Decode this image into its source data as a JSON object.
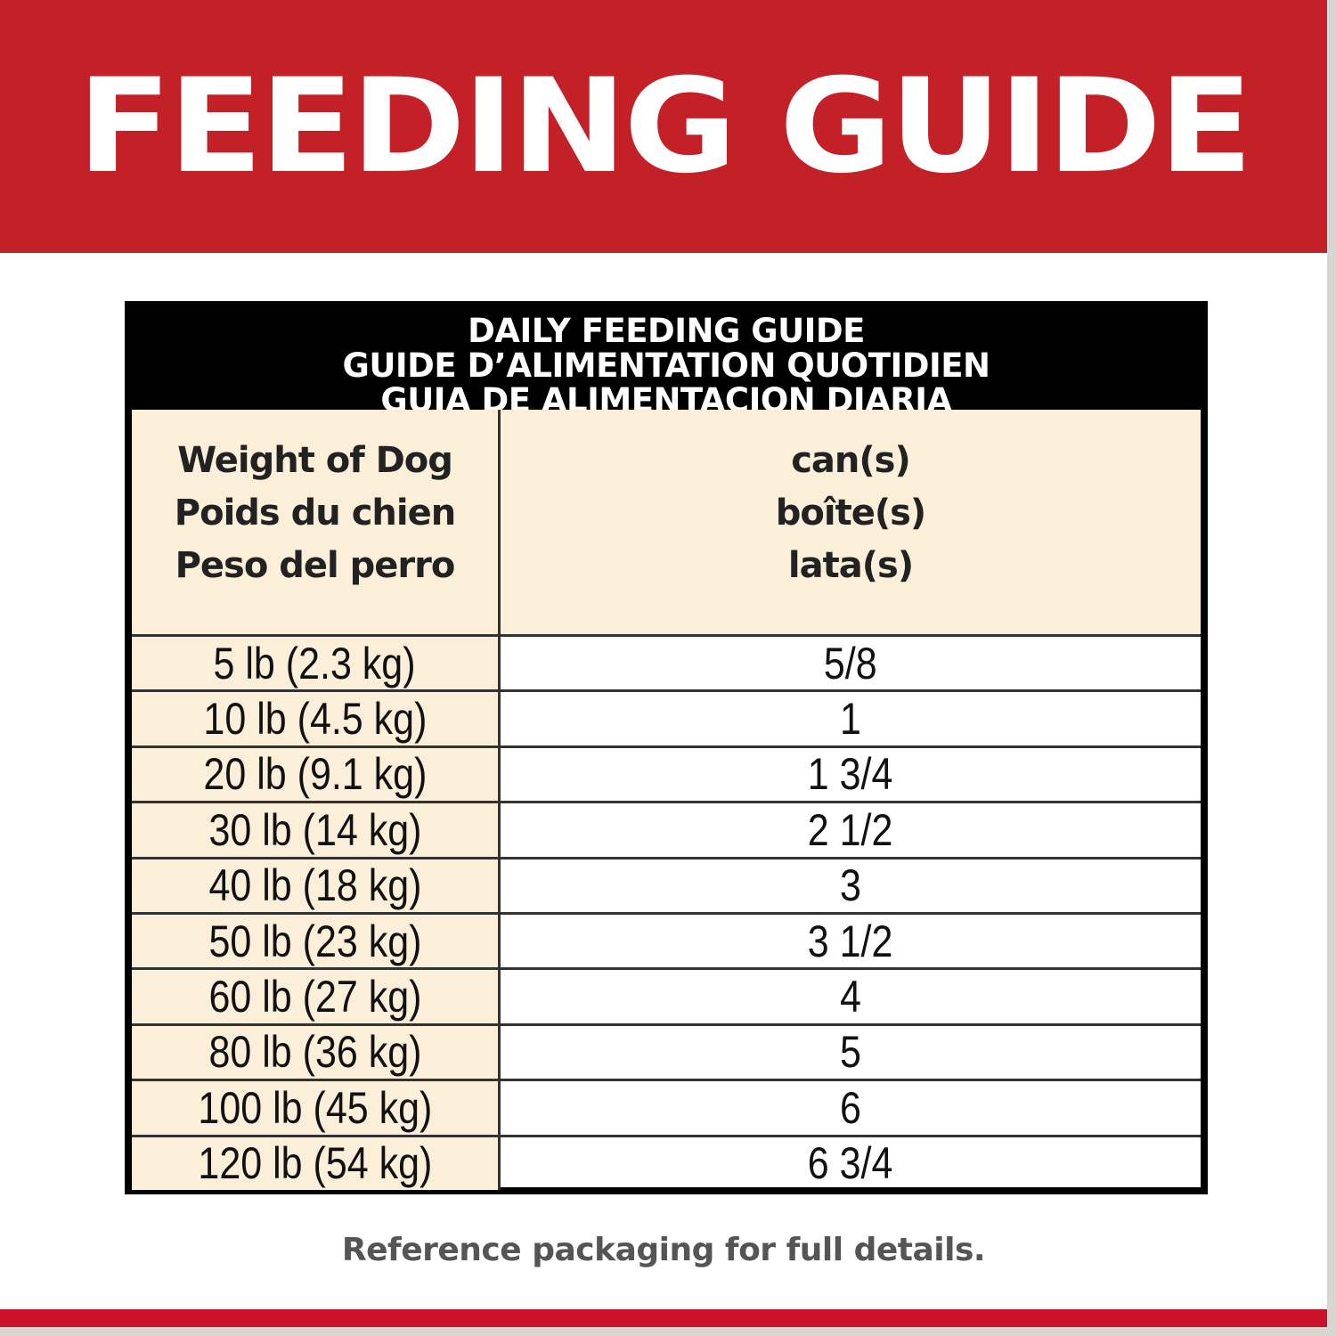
{
  "banner": {
    "title": "FEEDING GUIDE"
  },
  "table": {
    "title_lines": [
      "DAILY FEEDING GUIDE",
      "GUIDE D’ALIMENTATION QUOTIDIEN",
      "GUIA DE ALIMENTACION DIARIA"
    ],
    "col1_header": [
      "Weight of Dog",
      "Poids du chien",
      "Peso del perro"
    ],
    "col2_header": [
      "can(s)",
      "boîte(s)",
      "lata(s)"
    ],
    "rows": [
      {
        "weight": "5 lb (2.3 kg)",
        "cans": "5/8"
      },
      {
        "weight": "10 lb (4.5 kg)",
        "cans": "1"
      },
      {
        "weight": "20 lb (9.1 kg)",
        "cans": "1 3/4"
      },
      {
        "weight": "30 lb (14 kg)",
        "cans": "2 1/2"
      },
      {
        "weight": "40 lb (18 kg)",
        "cans": "3"
      },
      {
        "weight": "50 lb (23 kg)",
        "cans": "3 1/2"
      },
      {
        "weight": "60 lb (27 kg)",
        "cans": "4"
      },
      {
        "weight": "80 lb (36 kg)",
        "cans": "5"
      },
      {
        "weight": "100 lb (45 kg)",
        "cans": "6"
      },
      {
        "weight": "120 lb (54 kg)",
        "cans": "6 3/4"
      }
    ]
  },
  "footer": {
    "note": "Reference packaging for full details."
  },
  "colors": {
    "brand_red": "#c32127",
    "cream": "#fcefd9"
  }
}
